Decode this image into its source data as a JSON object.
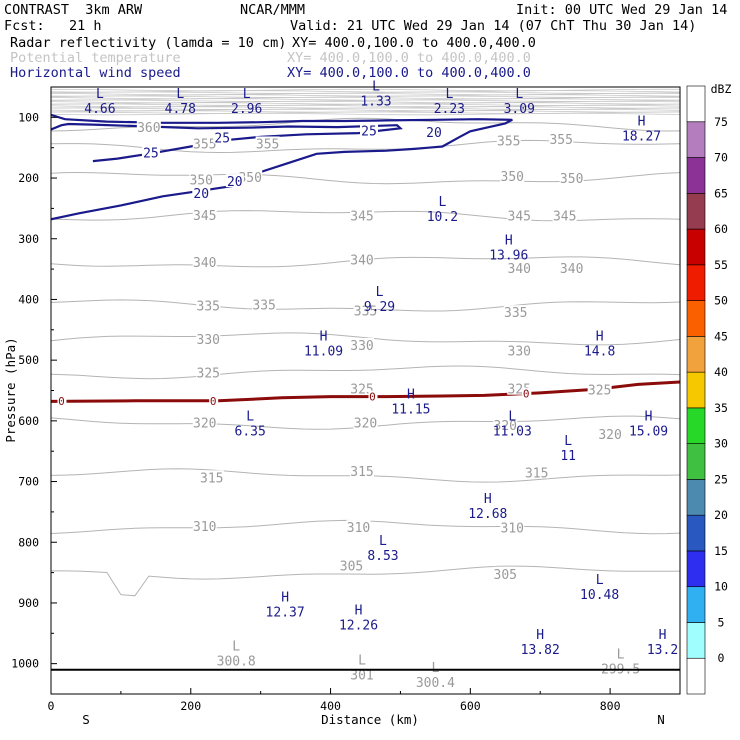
{
  "header": {
    "model": "CONTRAST  3km ARW",
    "org": "NCAR/MMM",
    "init": "Init: 00 UTC Wed 29 Jan 14",
    "fcst": "Fcst:   21 h",
    "valid": "Valid: 21 UTC Wed 29 Jan 14 (07 ChT Thu 30 Jan 14)",
    "line1_label": "Radar reflectivity (lamda = 10 cm)",
    "line1_xy": "XY= 400.0,100.0 to 400.0,400.0",
    "line2_label": "Potential temperature",
    "line2_xy": "XY= 400.0,100.0 to 400.0,400.0",
    "line3_label": "Horizontal wind speed",
    "line3_xy": "XY= 400.0,100.0 to 400.0,400.0"
  },
  "colors": {
    "wind": "#1a1a8c",
    "theta": "#b4b4b4",
    "theta_text": "#9a9a9a",
    "reflectivity_contour": "#8b0a0a",
    "axis": "#000000"
  },
  "chart_data": {
    "type": "cross-section",
    "xlabel": "Distance (km)",
    "ylabel": "Pressure (hPa)",
    "xlim": [
      0,
      900
    ],
    "ylim": [
      1050,
      50
    ],
    "xticks": [
      0,
      200,
      400,
      600,
      800
    ],
    "yticks": [
      100,
      200,
      300,
      400,
      500,
      600,
      700,
      800,
      900,
      1000
    ],
    "left_end_label": "S",
    "right_end_label": "N",
    "colorbar": {
      "unit": "dBZ",
      "levels": [
        0,
        5,
        10,
        15,
        20,
        25,
        30,
        35,
        40,
        45,
        50,
        55,
        60,
        65,
        70,
        75
      ],
      "colors": [
        "#ffffff",
        "#a0fefe",
        "#30b0f0",
        "#2e2ef0",
        "#2858c0",
        "#4d8ab0",
        "#40c040",
        "#28d828",
        "#f5c800",
        "#f2a23c",
        "#fa6000",
        "#f01c00",
        "#c80000",
        "#963c50",
        "#8c3296",
        "#b47dbe",
        "#ffffff"
      ]
    },
    "wind_speed_contours": [
      {
        "label": "25",
        "points": [
          [
            0,
            120
          ],
          [
            15,
            113
          ],
          [
            25,
            111
          ],
          [
            60,
            112
          ],
          [
            140,
            115
          ],
          [
            210,
            118
          ],
          [
            280,
            117
          ],
          [
            340,
            115
          ],
          [
            410,
            116
          ],
          [
            495,
            113
          ],
          [
            500,
            118
          ],
          [
            440,
            126
          ],
          [
            365,
            128
          ],
          [
            300,
            132
          ],
          [
            255,
            137
          ],
          [
            200,
            148
          ],
          [
            140,
            160
          ],
          [
            95,
            168
          ],
          [
            60,
            172
          ]
        ]
      },
      {
        "label": "20",
        "points": [
          [
            0,
            96
          ],
          [
            20,
            103
          ],
          [
            80,
            107
          ],
          [
            160,
            109
          ],
          [
            240,
            109
          ],
          [
            300,
            108
          ],
          [
            360,
            106
          ],
          [
            420,
            106
          ],
          [
            480,
            105
          ],
          [
            550,
            104
          ],
          [
            610,
            103
          ],
          [
            660,
            104
          ],
          [
            650,
            110
          ],
          [
            600,
            123
          ],
          [
            585,
            132
          ],
          [
            560,
            148
          ],
          [
            540,
            150
          ],
          [
            520,
            152
          ],
          [
            480,
            155
          ],
          [
            420,
            157
          ],
          [
            380,
            160
          ],
          [
            340,
            175
          ],
          [
            300,
            190
          ],
          [
            260,
            213
          ],
          [
            220,
            220
          ],
          [
            160,
            230
          ],
          [
            100,
            245
          ],
          [
            40,
            258
          ],
          [
            0,
            268
          ]
        ]
      }
    ],
    "wind_contour_labels": [
      {
        "text": "25",
        "x": 245,
        "y": 133
      },
      {
        "text": "25",
        "x": 143,
        "y": 158
      },
      {
        "text": "25",
        "x": 455,
        "y": 122
      },
      {
        "text": "20",
        "x": 548,
        "y": 124
      },
      {
        "text": "20",
        "x": 215,
        "y": 225
      },
      {
        "text": "20",
        "x": 263,
        "y": 205
      }
    ],
    "theta_contours": [
      {
        "value": 360,
        "p": 112
      },
      {
        "value": 355,
        "p": 148
      },
      {
        "value": 350,
        "p": 200
      },
      {
        "value": 345,
        "p": 262
      },
      {
        "value": 340,
        "p": 338
      },
      {
        "value": 335,
        "p": 410
      },
      {
        "value": 330,
        "p": 465
      },
      {
        "value": 325,
        "p": 520
      },
      {
        "value": 320,
        "p": 603
      },
      {
        "value": 315,
        "p": 690
      },
      {
        "value": 310,
        "p": 775
      },
      {
        "value": 305,
        "p": 850
      }
    ],
    "theta_contour_labels": [
      {
        "text": "360",
        "x": 140,
        "y": 116
      },
      {
        "text": "355",
        "x": 220,
        "y": 143
      },
      {
        "text": "355",
        "x": 310,
        "y": 143
      },
      {
        "text": "355",
        "x": 655,
        "y": 138
      },
      {
        "text": "355",
        "x": 730,
        "y": 136
      },
      {
        "text": "350",
        "x": 215,
        "y": 202
      },
      {
        "text": "350",
        "x": 285,
        "y": 198
      },
      {
        "text": "350",
        "x": 660,
        "y": 197
      },
      {
        "text": "350",
        "x": 745,
        "y": 200
      },
      {
        "text": "345",
        "x": 220,
        "y": 261
      },
      {
        "text": "345",
        "x": 445,
        "y": 262
      },
      {
        "text": "345",
        "x": 670,
        "y": 262
      },
      {
        "text": "345",
        "x": 735,
        "y": 262
      },
      {
        "text": "340",
        "x": 220,
        "y": 338
      },
      {
        "text": "340",
        "x": 445,
        "y": 334
      },
      {
        "text": "340",
        "x": 670,
        "y": 348
      },
      {
        "text": "340",
        "x": 745,
        "y": 348
      },
      {
        "text": "335",
        "x": 225,
        "y": 410
      },
      {
        "text": "335",
        "x": 305,
        "y": 408
      },
      {
        "text": "335",
        "x": 450,
        "y": 418
      },
      {
        "text": "335",
        "x": 665,
        "y": 421
      },
      {
        "text": "330",
        "x": 225,
        "y": 465
      },
      {
        "text": "330",
        "x": 445,
        "y": 475
      },
      {
        "text": "330",
        "x": 670,
        "y": 484
      },
      {
        "text": "325",
        "x": 225,
        "y": 520
      },
      {
        "text": "325",
        "x": 445,
        "y": 547
      },
      {
        "text": "325",
        "x": 670,
        "y": 547
      },
      {
        "text": "325",
        "x": 785,
        "y": 548
      },
      {
        "text": "320",
        "x": 220,
        "y": 603
      },
      {
        "text": "320",
        "x": 450,
        "y": 603
      },
      {
        "text": "320",
        "x": 650,
        "y": 607
      },
      {
        "text": "320",
        "x": 800,
        "y": 622
      },
      {
        "text": "315",
        "x": 230,
        "y": 693
      },
      {
        "text": "315",
        "x": 445,
        "y": 683
      },
      {
        "text": "315",
        "x": 695,
        "y": 685
      },
      {
        "text": "310",
        "x": 220,
        "y": 773
      },
      {
        "text": "310",
        "x": 440,
        "y": 775
      },
      {
        "text": "310",
        "x": 660,
        "y": 776
      },
      {
        "text": "305",
        "x": 430,
        "y": 838
      },
      {
        "text": "305",
        "x": 650,
        "y": 852
      }
    ],
    "reflectivity_zero_contour": {
      "label": "0",
      "points": [
        [
          0,
          568
        ],
        [
          120,
          567
        ],
        [
          240,
          567
        ],
        [
          330,
          562
        ],
        [
          400,
          560
        ],
        [
          480,
          560
        ],
        [
          560,
          559
        ],
        [
          620,
          558
        ],
        [
          700,
          554
        ],
        [
          780,
          548
        ],
        [
          840,
          540
        ],
        [
          900,
          536
        ]
      ]
    },
    "reflectivity_labels": [
      {
        "text": "0",
        "x": 15,
        "y": 567
      },
      {
        "text": "0",
        "x": 232,
        "y": 567
      },
      {
        "text": "0",
        "x": 460,
        "y": 560
      },
      {
        "text": "0",
        "x": 680,
        "y": 555
      }
    ],
    "wind_extrema": [
      {
        "kind": "L",
        "value": "4.66",
        "x": 70,
        "y": 75
      },
      {
        "kind": "L",
        "value": "4.78",
        "x": 185,
        "y": 75
      },
      {
        "kind": "L",
        "value": "2.96",
        "x": 280,
        "y": 75
      },
      {
        "kind": "L",
        "value": "1.33",
        "x": 465,
        "y": 62
      },
      {
        "kind": "L",
        "value": "2.23",
        "x": 570,
        "y": 75
      },
      {
        "kind": "L",
        "value": "3.09",
        "x": 670,
        "y": 75
      },
      {
        "kind": "H",
        "value": "18.27",
        "x": 845,
        "y": 120
      },
      {
        "kind": "L",
        "value": "10.2",
        "x": 560,
        "y": 253
      },
      {
        "kind": "H",
        "value": "13.96",
        "x": 655,
        "y": 316
      },
      {
        "kind": "L",
        "value": "9.29",
        "x": 470,
        "y": 401
      },
      {
        "kind": "H",
        "value": "11.09",
        "x": 390,
        "y": 474
      },
      {
        "kind": "H",
        "value": "14.8",
        "x": 785,
        "y": 474
      },
      {
        "kind": "H",
        "value": "11.15",
        "x": 515,
        "y": 570
      },
      {
        "kind": "L",
        "value": "6.35",
        "x": 285,
        "y": 606
      },
      {
        "kind": "L",
        "value": "11.03",
        "x": 660,
        "y": 606
      },
      {
        "kind": "H",
        "value": "15.09",
        "x": 855,
        "y": 606
      },
      {
        "kind": "L",
        "value": "11",
        "x": 740,
        "y": 646
      },
      {
        "kind": "H",
        "value": "12.68",
        "x": 625,
        "y": 742
      },
      {
        "kind": "L",
        "value": "8.53",
        "x": 475,
        "y": 811
      },
      {
        "kind": "L",
        "value": "10.48",
        "x": 785,
        "y": 875
      },
      {
        "kind": "H",
        "value": "12.37",
        "x": 335,
        "y": 904
      },
      {
        "kind": "H",
        "value": "12.26",
        "x": 440,
        "y": 926
      },
      {
        "kind": "H",
        "value": "13.82",
        "x": 700,
        "y": 966
      },
      {
        "kind": "H",
        "value": "13.2",
        "x": 875,
        "y": 966
      }
    ],
    "theta_extrema": [
      {
        "kind": "L",
        "value": "300.8",
        "x": 265,
        "y": 985
      },
      {
        "kind": "L",
        "value": "301",
        "x": 445,
        "y": 1008
      },
      {
        "kind": "L",
        "value": "300.4",
        "x": 550,
        "y": 1020
      },
      {
        "kind": "L",
        "value": "299.5",
        "x": 815,
        "y": 998
      }
    ],
    "surface_pressure": 1010
  }
}
